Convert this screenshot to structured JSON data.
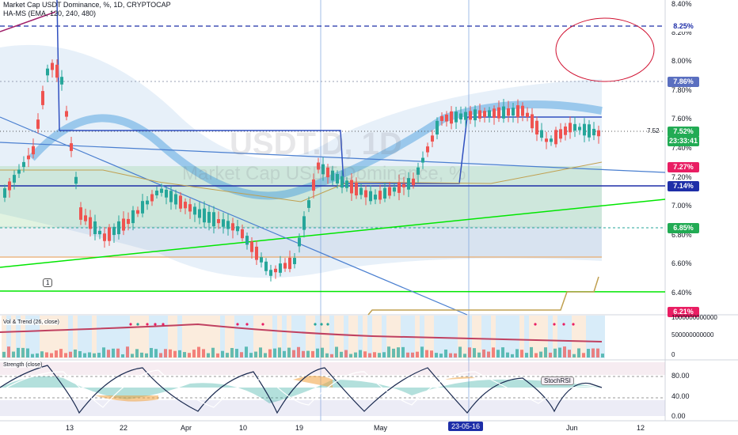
{
  "header": {
    "symbol_line": "Market Cap USDT Dominance, %, 1D, CRYPTOCAP",
    "indicator_line": "HA-MS (EMA, 120, 240, 480)"
  },
  "watermark": {
    "symbol": "USDT.D, 1D",
    "description": "Market Cap USDT Dominance, %"
  },
  "price_axis": {
    "ticks": [
      "8.40%",
      "8.20%",
      "8.00%",
      "7.80%",
      "7.60%",
      "7.40%",
      "7.20%",
      "7.00%",
      "6.80%",
      "6.60%",
      "6.40%"
    ],
    "labels": [
      {
        "text": "8.25%",
        "color": "#1e2ea8",
        "bg": "#ffffff"
      },
      {
        "text": "7.86%",
        "color": "#ffffff",
        "bg": "#5a6fc0"
      },
      {
        "text": "7.52%",
        "color": "#ffffff",
        "bg": "#22ab54"
      },
      {
        "text": "23:33:41",
        "color": "#ffffff",
        "bg": "#22ab54"
      },
      {
        "text": "7.27%",
        "color": "#ffffff",
        "bg": "#e91e63"
      },
      {
        "text": "7.14%",
        "color": "#ffffff",
        "bg": "#1e2ea8"
      },
      {
        "text": "6.85%",
        "color": "#ffffff",
        "bg": "#22ab54"
      },
      {
        "text": "6.21%",
        "color": "#ffffff",
        "bg": "#e91e63"
      }
    ],
    "current_price_marker": "7.52"
  },
  "volume_pane": {
    "title": "Vol & Trend (26, close)",
    "ticks": [
      "1000000000000",
      "500000000000",
      "0"
    ]
  },
  "strength_pane": {
    "title": "Strength (close)",
    "ticks": [
      "80.00",
      "40.00",
      "0.00"
    ],
    "annotation": "StochRSI"
  },
  "date_axis": {
    "labels": [
      "13",
      "22",
      "Apr",
      "10",
      "19",
      "May",
      "23-05-16",
      "Jun",
      "12"
    ]
  },
  "annotations": {
    "wave_label": "1"
  },
  "colors": {
    "bull": "#26a69a",
    "bear": "#ef5350",
    "accent_blue": "#1e2ea8",
    "green_line": "#00e600",
    "pink": "#e91e63"
  }
}
